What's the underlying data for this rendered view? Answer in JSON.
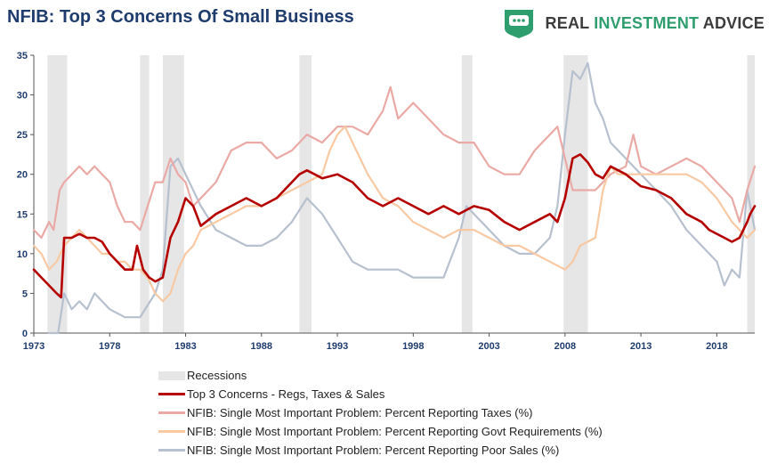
{
  "header": {
    "title": "NFIB: Top 3 Concerns Of Small Business",
    "brand_prefix": "REAL ",
    "brand_highlight": "INVESTMENT",
    "brand_suffix": " ADVICE",
    "brand_icon": "chat-bubble-shield-icon",
    "brand_color": "#2e9e6e"
  },
  "chart_data": {
    "type": "line",
    "title": "NFIB: Top 3 Concerns Of Small Business",
    "xlabel": "",
    "ylabel": "",
    "xlim": [
      1973,
      2020.5
    ],
    "ylim": [
      0,
      35
    ],
    "x_ticks": [
      "1973",
      "1978",
      "1983",
      "1988",
      "1993",
      "1998",
      "2003",
      "2008",
      "2013",
      "2018"
    ],
    "y_ticks": [
      "0",
      "5",
      "10",
      "15",
      "20",
      "25",
      "30",
      "35"
    ],
    "grid": false,
    "legend_position": "bottom",
    "recessions_label": "Recessions",
    "recessions": [
      [
        1973.9,
        1975.2
      ],
      [
        1980.0,
        1980.6
      ],
      [
        1981.5,
        1982.9
      ],
      [
        1990.5,
        1991.3
      ],
      [
        2001.2,
        2001.9
      ],
      [
        2007.9,
        2009.5
      ],
      [
        2020.0,
        2020.5
      ]
    ],
    "recession_color": "#e6e6e6",
    "series": [
      {
        "name": "Top 3 Concerns - Regs, Taxes & Sales",
        "color": "#b50000",
        "width": 2.6,
        "x": [
          1973.0,
          1973.5,
          1974.0,
          1974.5,
          1974.8,
          1975.0,
          1975.5,
          1976.0,
          1976.5,
          1977.0,
          1977.5,
          1978.0,
          1978.5,
          1979.0,
          1979.5,
          1979.8,
          1980.2,
          1980.6,
          1981.0,
          1981.5,
          1982.0,
          1982.5,
          1983.0,
          1983.5,
          1984.0,
          1985.0,
          1986.0,
          1987.0,
          1988.0,
          1989.0,
          1990.0,
          1990.5,
          1991.0,
          1991.5,
          1992.0,
          1993.0,
          1994.0,
          1995.0,
          1996.0,
          1997.0,
          1998.0,
          1999.0,
          2000.0,
          2001.0,
          2002.0,
          2003.0,
          2004.0,
          2005.0,
          2006.0,
          2007.0,
          2007.5,
          2008.0,
          2008.5,
          2009.0,
          2009.5,
          2010.0,
          2010.5,
          2011.0,
          2012.0,
          2013.0,
          2014.0,
          2015.0,
          2016.0,
          2017.0,
          2017.5,
          2018.0,
          2018.5,
          2019.0,
          2019.5,
          2020.0,
          2020.2,
          2020.5
        ],
        "y": [
          8,
          7,
          6,
          5,
          4.5,
          12,
          12,
          12.5,
          12,
          12,
          11.5,
          10,
          9,
          8,
          8,
          11,
          8,
          7,
          6.5,
          7,
          12,
          14,
          17,
          16,
          13.5,
          15,
          16,
          17,
          16,
          17,
          19,
          20,
          20.5,
          20,
          19.5,
          20,
          19,
          17,
          16,
          17,
          16,
          15,
          16,
          15,
          16,
          15.5,
          14,
          13,
          14,
          15,
          14,
          17,
          22,
          22.5,
          21.5,
          20,
          19.5,
          21,
          20,
          18.5,
          18,
          17,
          15,
          14,
          13,
          12.5,
          12,
          11.5,
          12,
          14,
          15,
          16
        ]
      },
      {
        "name": "NFIB: Single Most Important Problem: Percent Reporting Taxes (%)",
        "color": "#eaa9a5",
        "width": 2.2,
        "x": [
          1973.0,
          1973.5,
          1974.0,
          1974.3,
          1974.7,
          1975.0,
          1975.5,
          1976.0,
          1976.5,
          1977.0,
          1977.5,
          1978.0,
          1978.5,
          1979.0,
          1979.5,
          1980.0,
          1980.5,
          1981.0,
          1981.5,
          1982.0,
          1982.5,
          1983.0,
          1983.5,
          1984.0,
          1985.0,
          1986.0,
          1987.0,
          1988.0,
          1989.0,
          1990.0,
          1991.0,
          1992.0,
          1993.0,
          1994.0,
          1995.0,
          1996.0,
          1996.5,
          1997.0,
          1998.0,
          1999.0,
          2000.0,
          2001.0,
          2002.0,
          2003.0,
          2004.0,
          2005.0,
          2006.0,
          2007.0,
          2007.5,
          2008.0,
          2008.5,
          2009.0,
          2010.0,
          2011.0,
          2012.0,
          2012.5,
          2013.0,
          2014.0,
          2015.0,
          2016.0,
          2017.0,
          2018.0,
          2019.0,
          2019.5,
          2020.0,
          2020.5
        ],
        "y": [
          13,
          12,
          14,
          13,
          18,
          19,
          20,
          21,
          20,
          21,
          20,
          19,
          16,
          14,
          14,
          13,
          16,
          19,
          19,
          22,
          20,
          19,
          16,
          17,
          19,
          23,
          24,
          24,
          22,
          23,
          25,
          24,
          26,
          26,
          25,
          28,
          31,
          27,
          29,
          27,
          25,
          24,
          24,
          21,
          20,
          20,
          23,
          25,
          26,
          22,
          18,
          18,
          18,
          20,
          21,
          25,
          21,
          20,
          21,
          22,
          21,
          19,
          17,
          14,
          18,
          21
        ]
      },
      {
        "name": "NFIB: Single Most Important Problem: Percent Reporting Govt Requirements (%)",
        "color": "#f8c9a2",
        "width": 2.2,
        "x": [
          1973.0,
          1973.5,
          1974.0,
          1974.5,
          1975.0,
          1975.5,
          1976.0,
          1976.5,
          1977.0,
          1977.5,
          1978.0,
          1978.5,
          1979.0,
          1979.5,
          1980.0,
          1980.5,
          1981.0,
          1981.5,
          1982.0,
          1982.5,
          1983.0,
          1983.5,
          1984.0,
          1985.0,
          1986.0,
          1987.0,
          1988.0,
          1989.0,
          1990.0,
          1991.0,
          1992.0,
          1992.5,
          1993.0,
          1993.5,
          1994.0,
          1995.0,
          1996.0,
          1997.0,
          1998.0,
          1999.0,
          2000.0,
          2001.0,
          2002.0,
          2003.0,
          2004.0,
          2005.0,
          2006.0,
          2007.0,
          2008.0,
          2008.5,
          2009.0,
          2010.0,
          2010.5,
          2011.0,
          2011.5,
          2012.0,
          2013.0,
          2014.0,
          2015.0,
          2016.0,
          2017.0,
          2018.0,
          2019.0,
          2019.5,
          2020.0,
          2020.5
        ],
        "y": [
          11,
          10,
          8,
          9,
          11,
          12,
          13,
          12,
          11,
          10,
          10,
          9,
          9,
          8,
          8,
          7,
          5,
          4,
          5,
          8,
          10,
          11,
          13,
          14,
          15,
          16,
          16,
          17,
          18,
          19,
          20,
          23,
          25,
          26,
          24,
          20,
          17,
          16,
          14,
          13,
          12,
          13,
          13,
          12,
          11,
          11,
          10,
          9,
          8,
          9,
          11,
          12,
          18,
          21,
          20,
          20,
          20,
          20,
          20,
          20,
          19,
          17,
          14,
          13,
          12,
          13
        ]
      },
      {
        "name": "NFIB: Single Most Important Problem: Percent Reporting Poor Sales (%)",
        "color": "#b6c0cf",
        "width": 2.2,
        "x": [
          1974.0,
          1974.6,
          1975.0,
          1975.5,
          1976.0,
          1976.5,
          1977.0,
          1977.5,
          1978.0,
          1979.0,
          1980.0,
          1981.0,
          1981.5,
          1982.0,
          1982.5,
          1983.0,
          1984.0,
          1985.0,
          1986.0,
          1987.0,
          1988.0,
          1989.0,
          1990.0,
          1991.0,
          1992.0,
          1993.0,
          1994.0,
          1995.0,
          1996.0,
          1997.0,
          1998.0,
          1999.0,
          2000.0,
          2001.0,
          2001.5,
          2002.0,
          2003.0,
          2004.0,
          2005.0,
          2006.0,
          2007.0,
          2007.5,
          2008.0,
          2008.5,
          2009.0,
          2009.5,
          2010.0,
          2010.5,
          2011.0,
          2012.0,
          2013.0,
          2014.0,
          2015.0,
          2016.0,
          2017.0,
          2018.0,
          2018.5,
          2019.0,
          2019.5,
          2020.0,
          2020.5
        ],
        "y": [
          0,
          0,
          5,
          3,
          4,
          3,
          5,
          4,
          3,
          2,
          2,
          5,
          8,
          21,
          22,
          20,
          16,
          13,
          12,
          11,
          11,
          12,
          14,
          17,
          15,
          12,
          9,
          8,
          8,
          8,
          7,
          7,
          7,
          12,
          16,
          15,
          13,
          11,
          10,
          10,
          12,
          16,
          25,
          33,
          32,
          34,
          29,
          27,
          24,
          22,
          20,
          18,
          16,
          13,
          11,
          9,
          6,
          8,
          7,
          18,
          13
        ]
      }
    ]
  }
}
